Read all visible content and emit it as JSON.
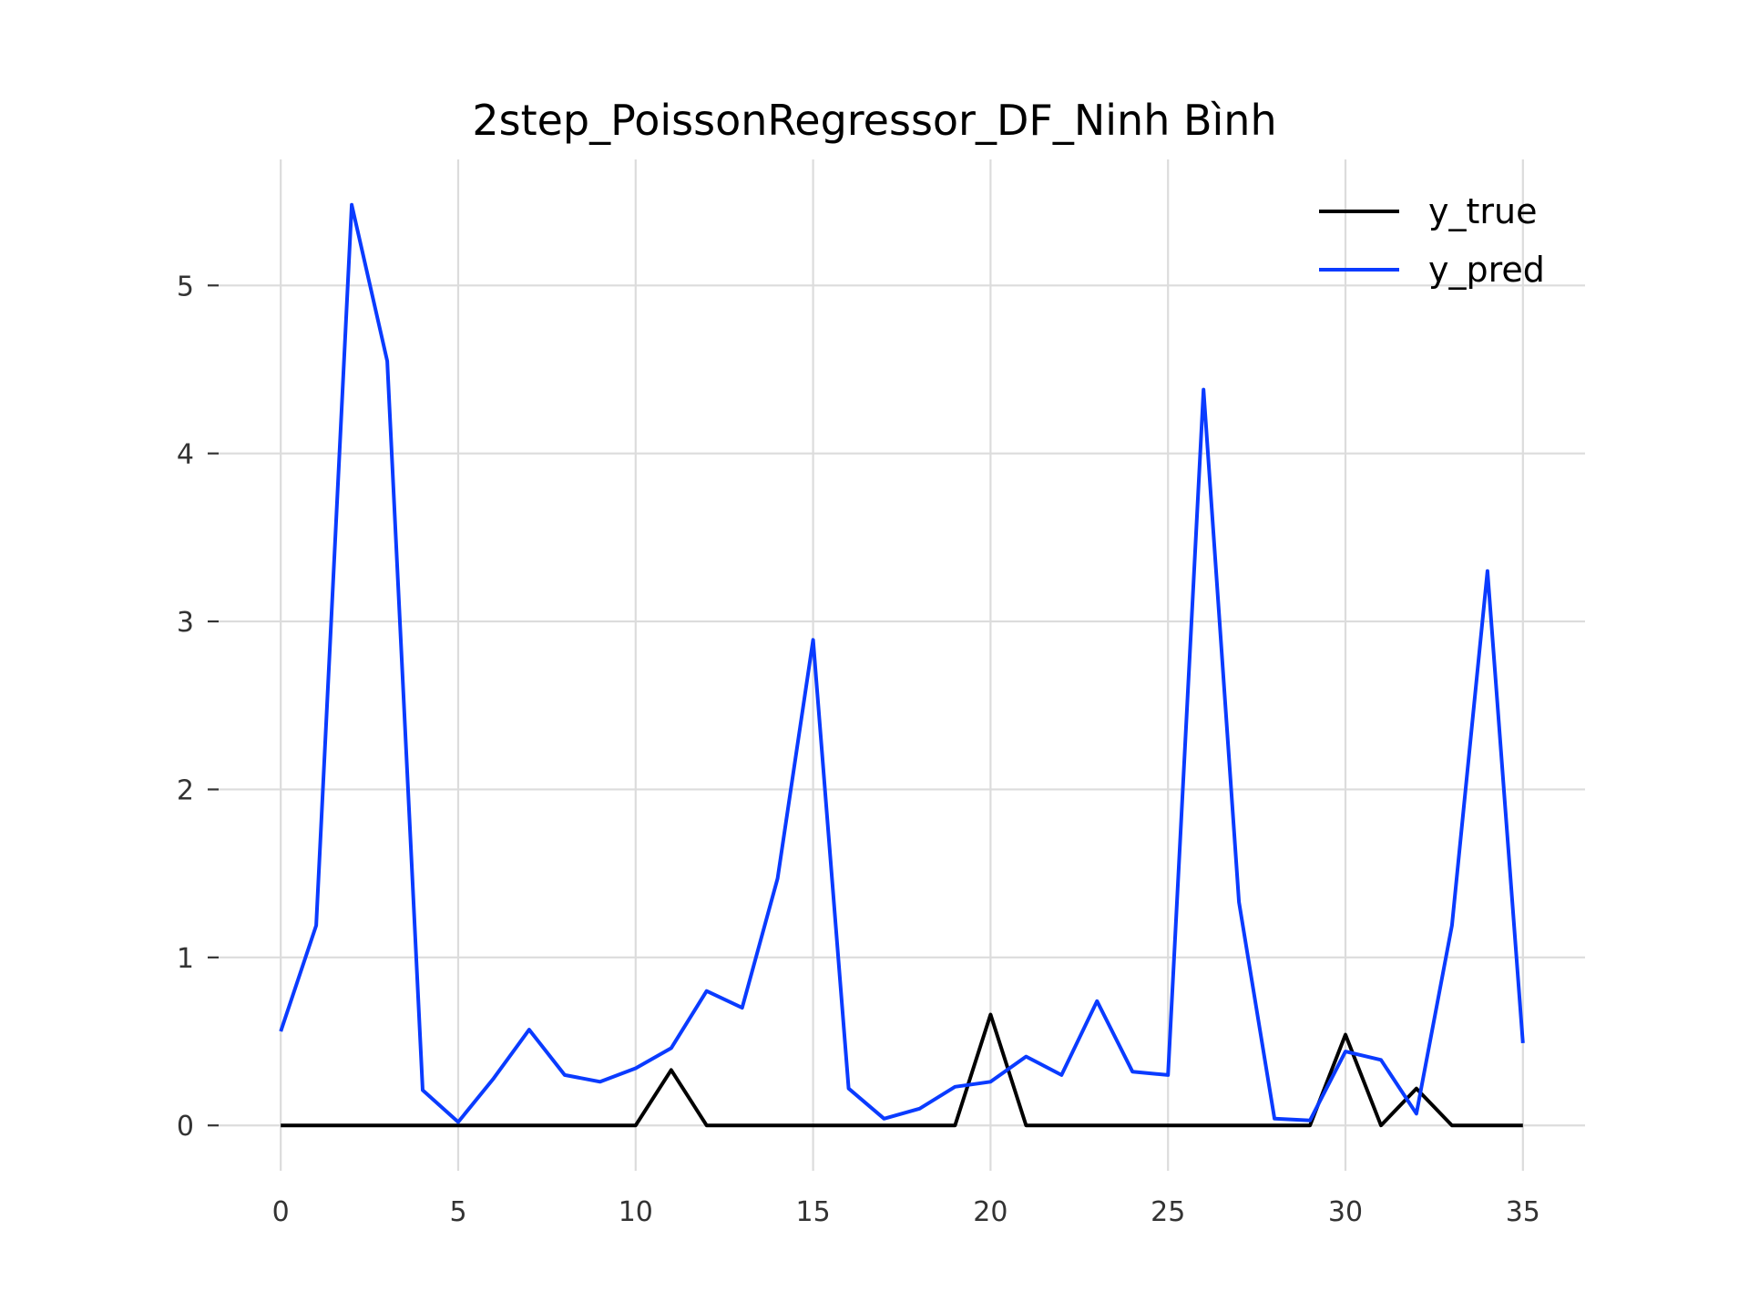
{
  "chart_data": {
    "type": "line",
    "title": "2step_PoissonRegressor_DF_Ninh Bình",
    "xlabel": "",
    "ylabel": "",
    "xlim": [
      -1.75,
      36.75
    ],
    "ylim": [
      -0.27,
      5.75
    ],
    "x_ticks": [
      "0",
      "5",
      "10",
      "15",
      "20",
      "25",
      "30",
      "35"
    ],
    "y_ticks": [
      "0",
      "1",
      "2",
      "3",
      "4",
      "5"
    ],
    "grid": true,
    "legend_position": "top-right",
    "x": [
      0,
      1,
      2,
      3,
      4,
      5,
      6,
      7,
      8,
      9,
      10,
      11,
      12,
      13,
      14,
      15,
      16,
      17,
      18,
      19,
      20,
      21,
      22,
      23,
      24,
      25,
      26,
      27,
      28,
      29,
      30,
      31,
      32,
      33,
      34,
      35
    ],
    "series": [
      {
        "name": "y_true",
        "color": "#000000",
        "values": [
          0,
          0,
          0,
          0,
          0,
          0,
          0,
          0,
          0,
          0,
          0,
          0.33,
          0,
          0,
          0,
          0,
          0,
          0,
          0,
          0,
          0.66,
          0,
          0,
          0,
          0,
          0,
          0,
          0,
          0,
          0,
          0.54,
          0,
          0.22,
          0,
          0,
          0
        ]
      },
      {
        "name": "y_pred",
        "color": "#0a3bff",
        "values": [
          0.56,
          1.19,
          5.48,
          4.55,
          0.21,
          0.02,
          0.28,
          0.57,
          0.3,
          0.26,
          0.34,
          0.46,
          0.8,
          0.7,
          1.47,
          2.89,
          0.22,
          0.04,
          0.1,
          0.23,
          0.26,
          0.41,
          0.3,
          0.74,
          0.32,
          0.3,
          4.38,
          1.33,
          0.04,
          0.03,
          0.44,
          0.39,
          0.07,
          1.19,
          3.3,
          0.49
        ]
      }
    ]
  }
}
